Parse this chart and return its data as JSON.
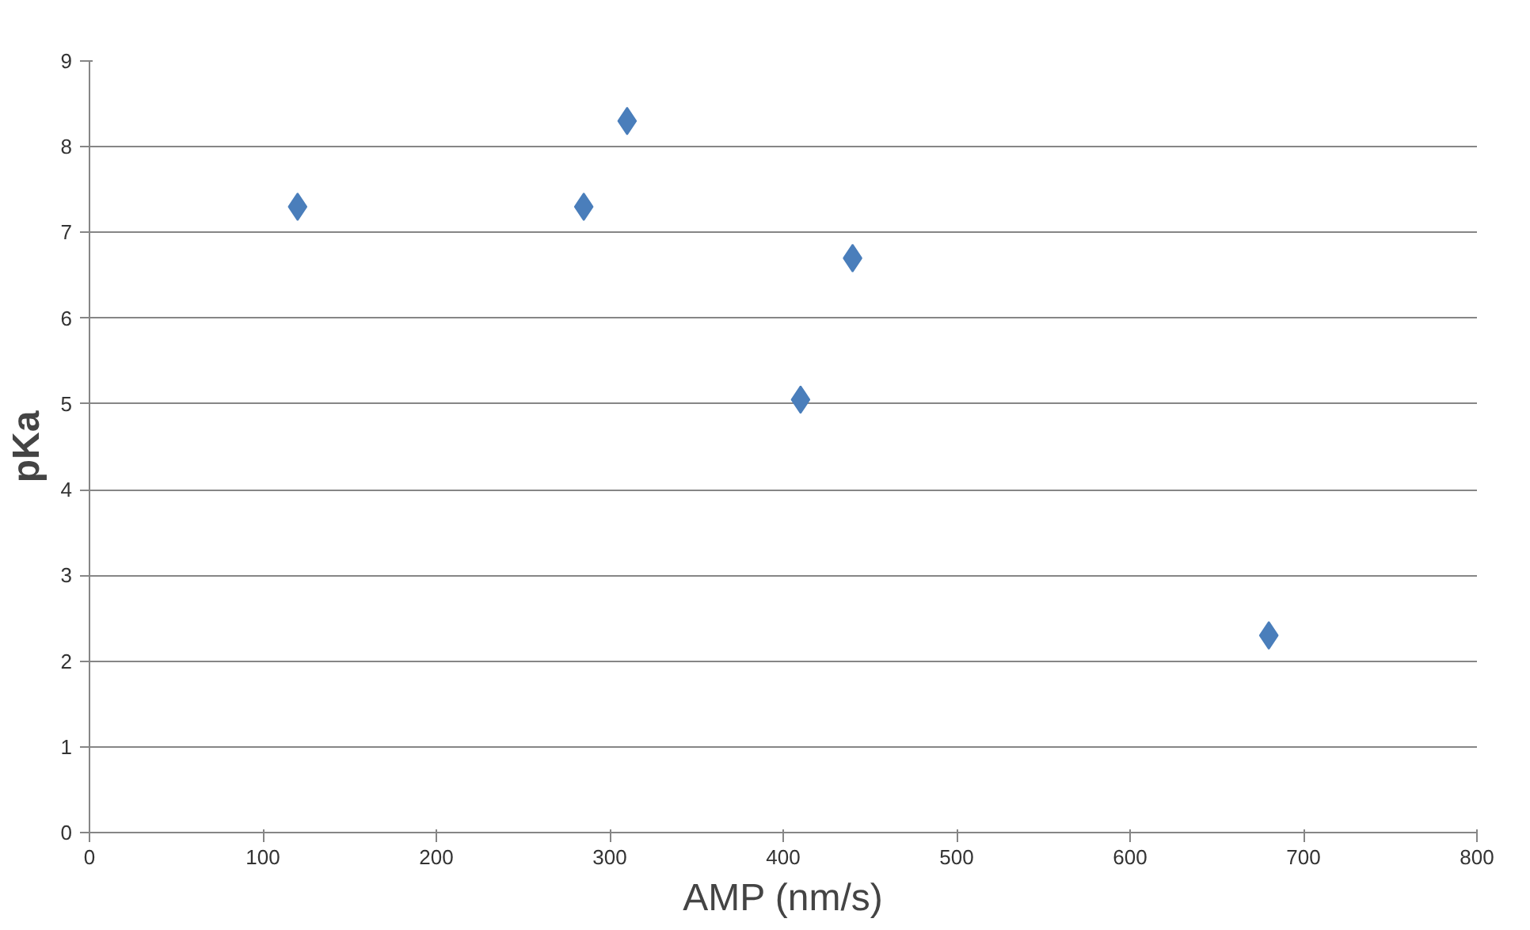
{
  "chart_data": {
    "type": "scatter",
    "xlabel": "AMP (nm/s)",
    "ylabel": "pKa",
    "x": [
      120,
      285,
      310,
      410,
      440,
      680
    ],
    "series": [
      {
        "color": "#4a7ebb",
        "values": [
          7.3,
          7.3,
          8.3,
          5.05,
          6.7,
          2.3
        ]
      }
    ],
    "xlim": [
      0,
      800
    ],
    "xticks": [
      0,
      100,
      200,
      300,
      400,
      500,
      600,
      700,
      800
    ],
    "ylim": [
      0,
      9
    ],
    "yticks": [
      0,
      1,
      2,
      3,
      4,
      5,
      6,
      7,
      8,
      9
    ],
    "grid": "y",
    "marker": "diamond"
  }
}
